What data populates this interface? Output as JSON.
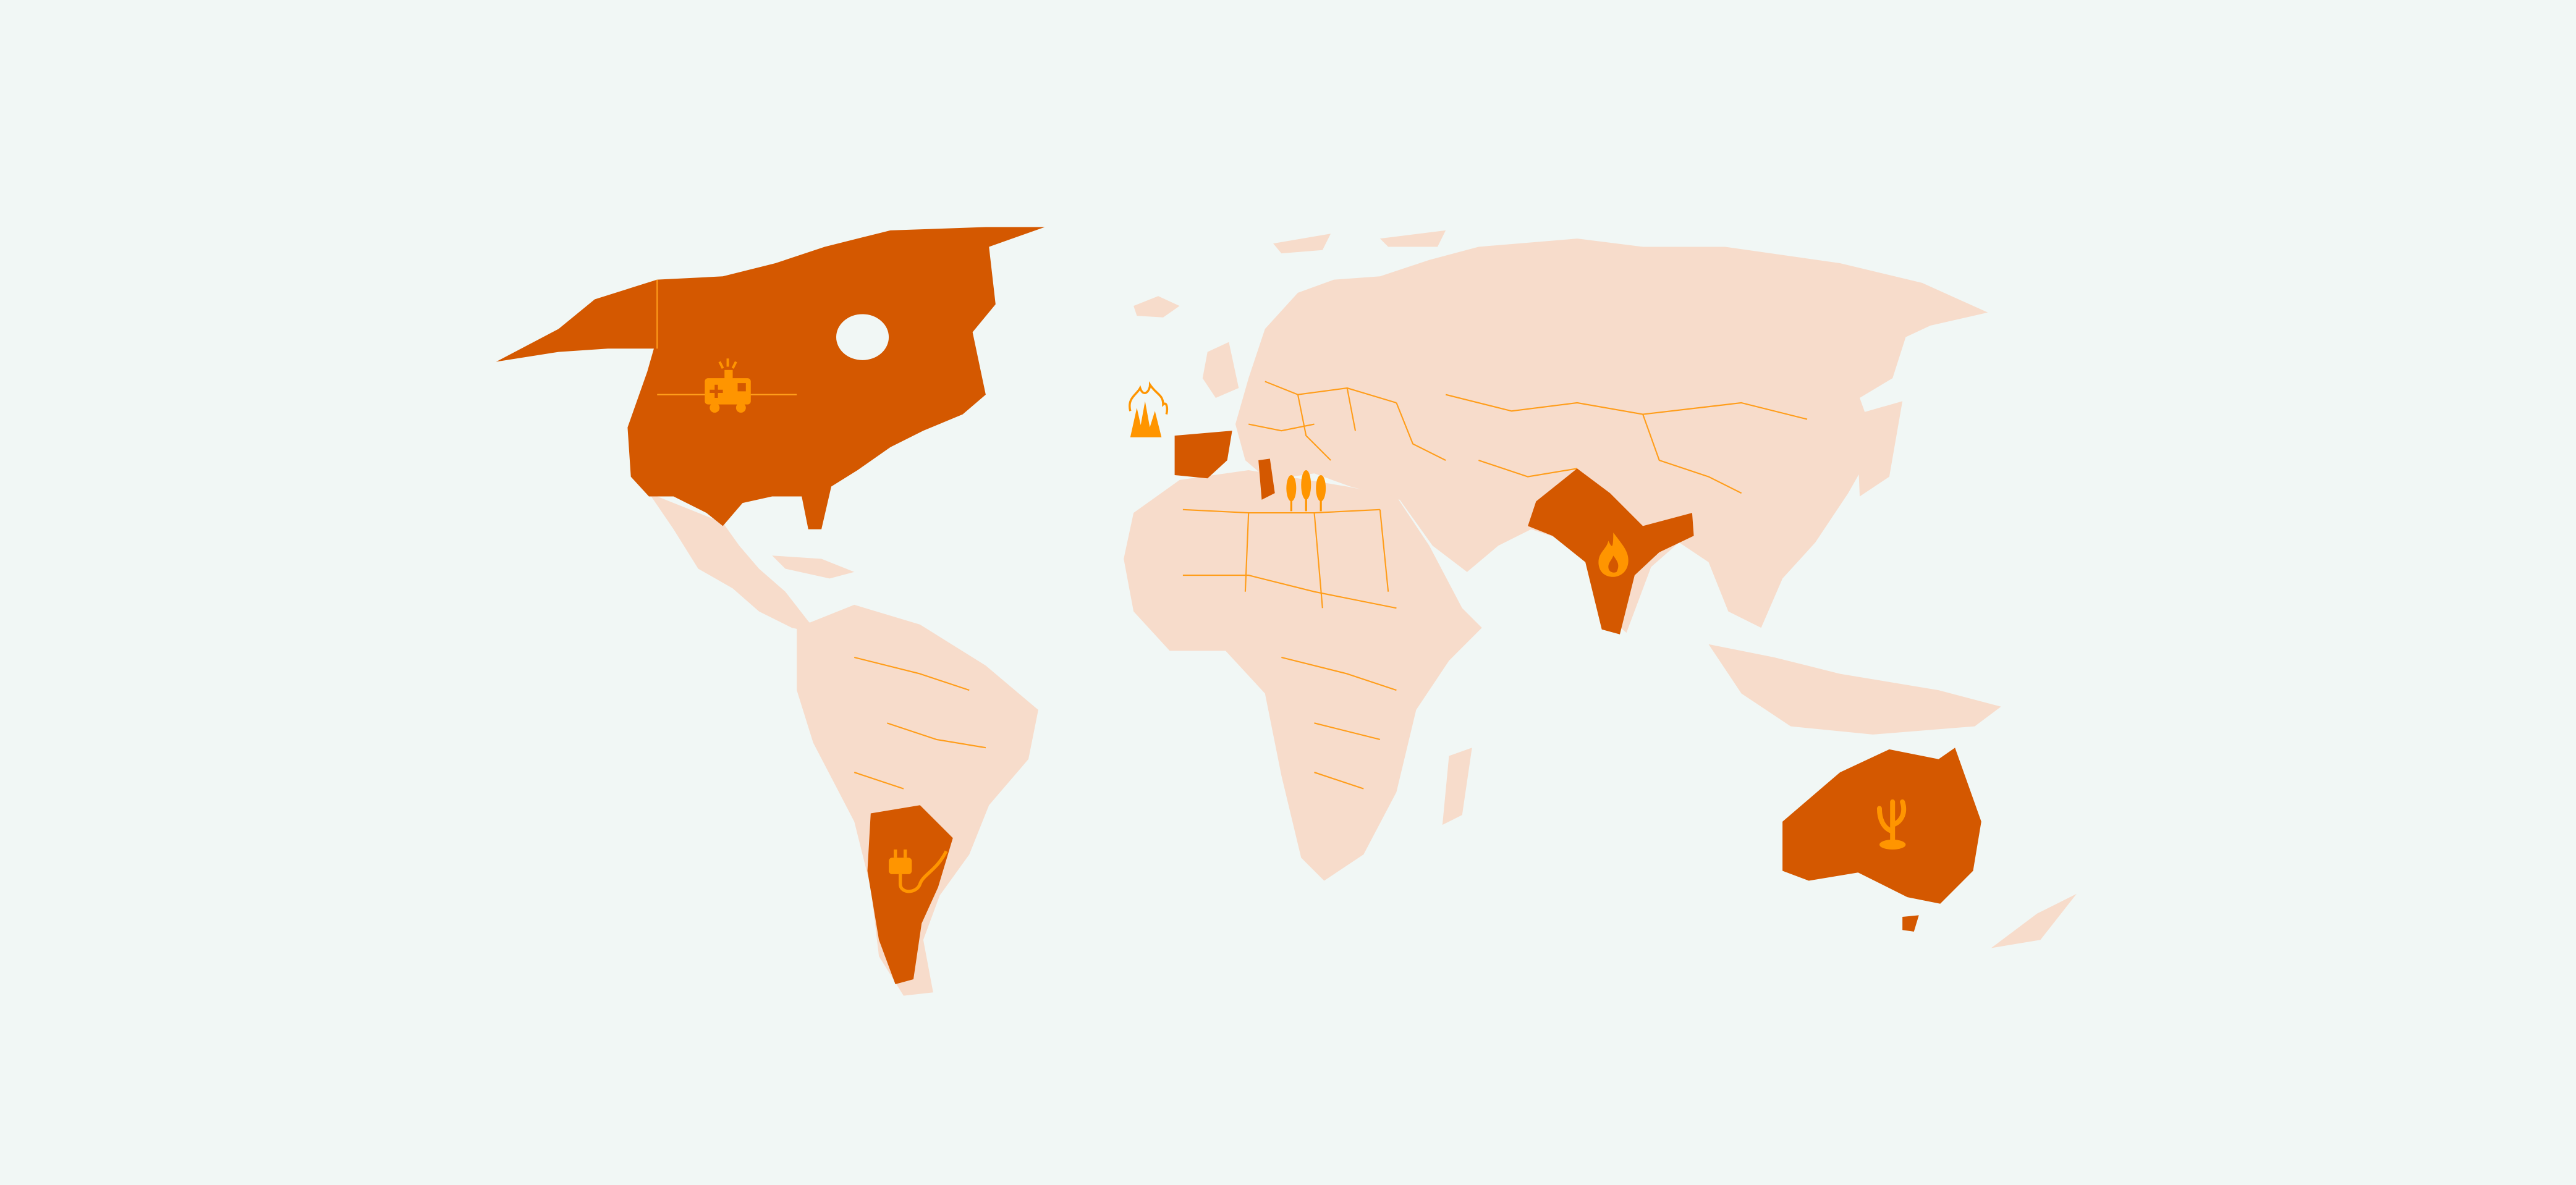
{
  "map": {
    "colors": {
      "background": "#f1f7f5",
      "land": "#f7dccb",
      "highlighted_land": "#d45800",
      "borders_and_icons": "#ff9500"
    },
    "markers": [
      {
        "icon": "ambulance-icon"
      },
      {
        "icon": "forest-fire-icon"
      },
      {
        "icon": "wheat-icon"
      },
      {
        "icon": "fire-icon"
      },
      {
        "icon": "power-plug-icon"
      },
      {
        "icon": "coral-icon"
      }
    ]
  }
}
